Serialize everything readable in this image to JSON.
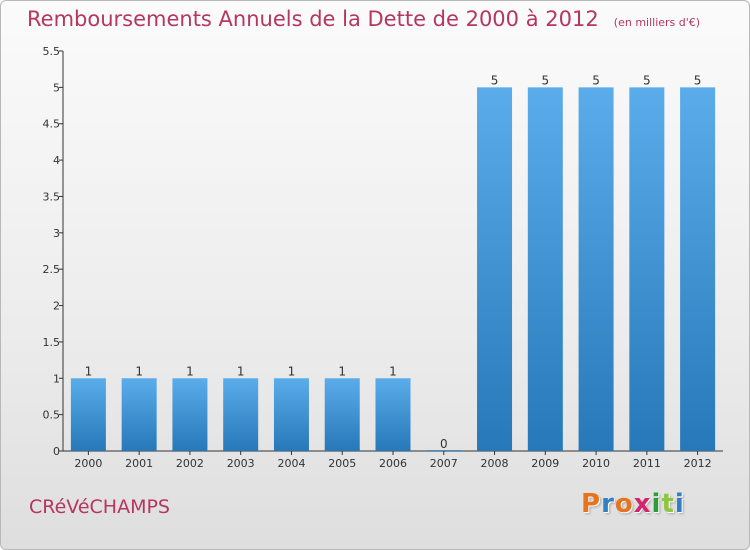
{
  "title": "Remboursements Annuels de la Dette de 2000 à 2012",
  "unit_note": "(en milliers d'€)",
  "town": "CRéVéCHAMPS",
  "logo": {
    "text": "Proxiti",
    "letter_colors": [
      "#e8731f",
      "#2f7fc1",
      "#e8731f",
      "#d8226a",
      "#2f9c3c",
      "#8fc63f",
      "#2f7fc1"
    ]
  },
  "colors": {
    "bar_top": "#5aacea",
    "bar_bottom": "#2778b8",
    "title": "#b5365f",
    "axis": "#333333"
  },
  "chart_data": {
    "type": "bar",
    "categories": [
      "2000",
      "2001",
      "2002",
      "2003",
      "2004",
      "2005",
      "2006",
      "2007",
      "2008",
      "2009",
      "2010",
      "2011",
      "2012"
    ],
    "values": [
      1,
      1,
      1,
      1,
      1,
      1,
      1,
      0,
      5,
      5,
      5,
      5,
      5
    ],
    "data_labels": [
      "1",
      "1",
      "1",
      "1",
      "1",
      "1",
      "1",
      "0",
      "5",
      "5",
      "5",
      "5",
      "5"
    ],
    "yticks": [
      "0",
      "0.5",
      "1",
      "1.5",
      "2",
      "2.5",
      "3",
      "3.5",
      "4",
      "4.5",
      "5",
      "5.5"
    ],
    "ylim": [
      0,
      5.5
    ],
    "grid": false,
    "legend": "none"
  }
}
